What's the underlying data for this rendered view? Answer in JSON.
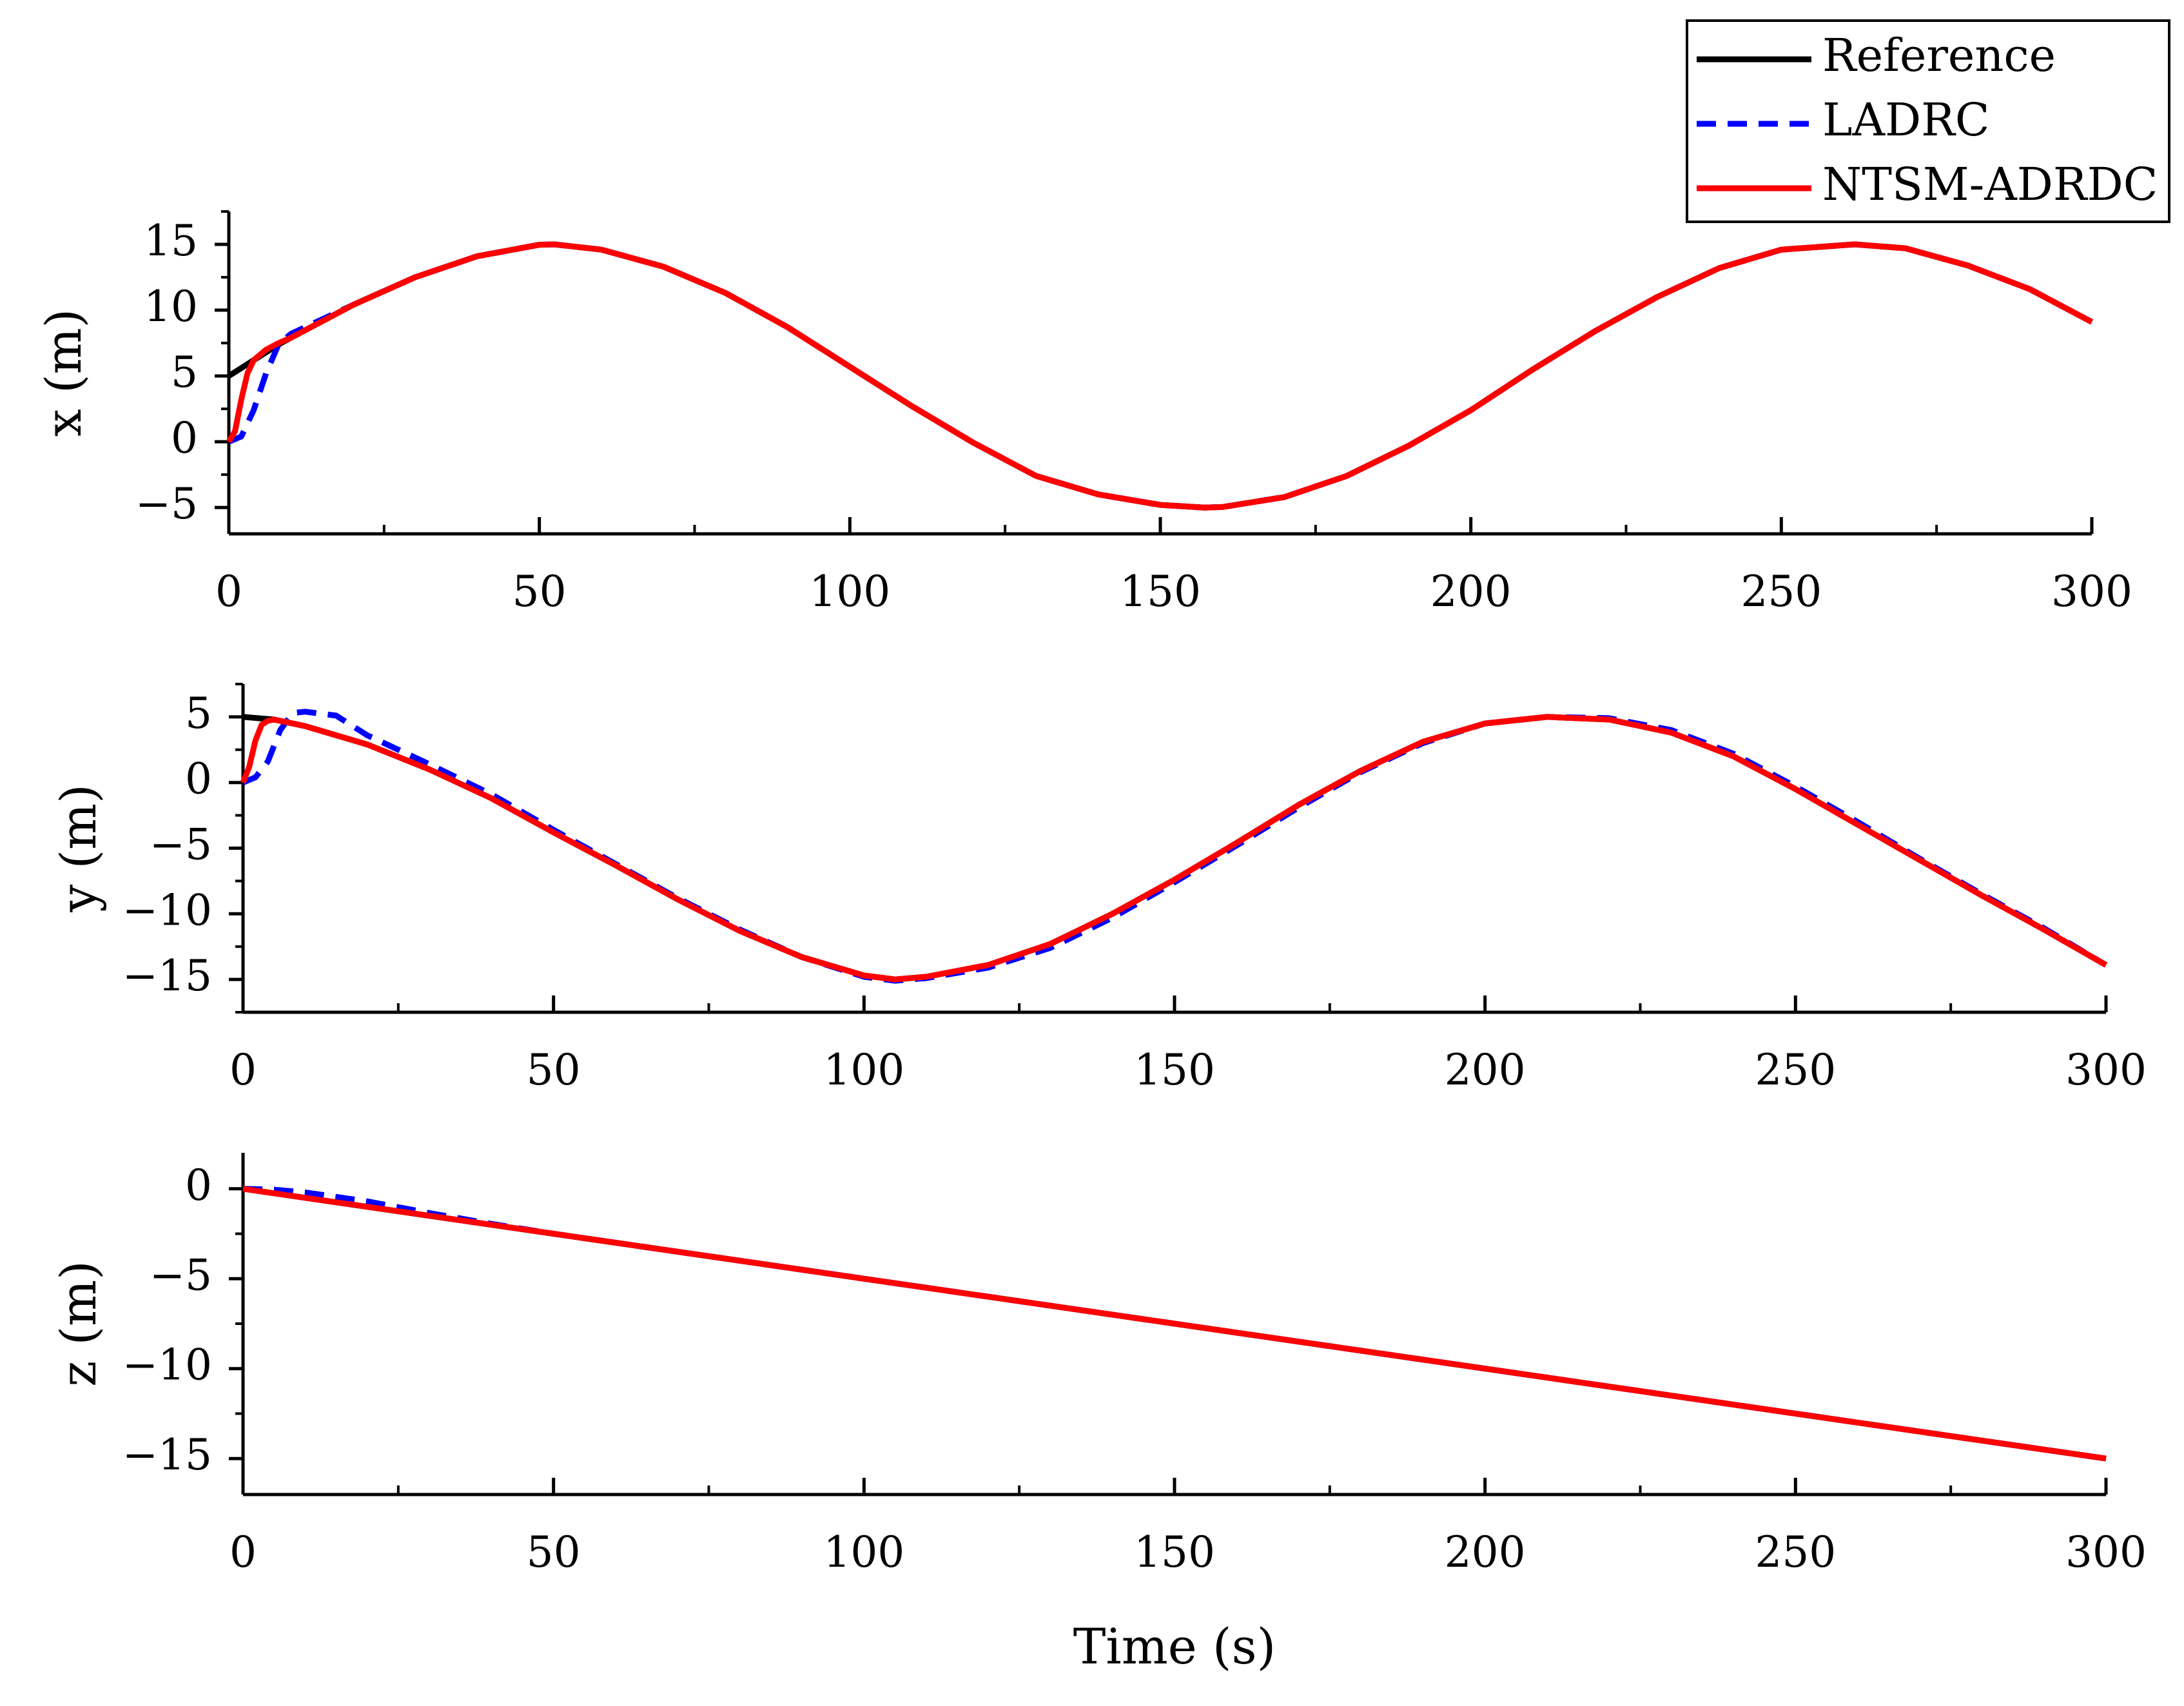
{
  "chart_data": [
    {
      "type": "line",
      "title": "",
      "xlabel": "",
      "ylabel": "x (m)",
      "xlim": [
        0,
        300
      ],
      "ylim": [
        -7,
        17.5
      ],
      "xticks": [
        0,
        50,
        100,
        150,
        200,
        250,
        300
      ],
      "yticks": [
        -5,
        0,
        5,
        10,
        15
      ],
      "grid": false,
      "series": [
        {
          "name": "Reference",
          "color": "#000000",
          "style": "solid",
          "x": [
            0,
            2,
            4,
            6,
            8,
            10,
            20,
            30,
            40,
            50,
            52.4,
            60,
            70,
            80,
            90,
            100,
            110,
            120,
            130,
            140,
            150,
            157.1,
            160,
            170,
            180,
            190,
            200,
            210,
            220,
            230,
            240,
            250,
            261.8,
            270,
            280,
            290,
            300
          ],
          "y": [
            5.0,
            5.6,
            6.2,
            6.8,
            7.4,
            7.9,
            10.4,
            12.5,
            14.1,
            14.97,
            15.0,
            14.6,
            13.3,
            11.3,
            8.7,
            5.7,
            2.7,
            -0.1,
            -2.6,
            -4.0,
            -4.8,
            -5.0,
            -4.96,
            -4.2,
            -2.6,
            -0.3,
            2.4,
            5.5,
            8.4,
            11.0,
            13.2,
            14.6,
            15.0,
            14.7,
            13.4,
            11.6,
            9.1
          ]
        },
        {
          "name": "LADRC",
          "color": "#0000ff",
          "style": "dashed",
          "x": [
            0,
            2,
            4,
            6,
            8,
            10,
            20,
            30,
            40,
            50,
            52.4,
            60,
            70,
            80,
            90,
            100,
            110,
            120,
            130,
            140,
            150,
            157.1,
            160,
            170,
            180,
            190,
            200,
            210,
            220,
            230,
            240,
            250,
            261.8,
            270,
            280,
            290,
            300
          ],
          "y": [
            0.0,
            0.4,
            2.4,
            5.2,
            7.4,
            8.2,
            10.4,
            12.5,
            14.1,
            14.97,
            15.0,
            14.6,
            13.3,
            11.3,
            8.7,
            5.7,
            2.7,
            -0.1,
            -2.6,
            -4.0,
            -4.8,
            -5.0,
            -4.96,
            -4.2,
            -2.6,
            -0.3,
            2.4,
            5.5,
            8.4,
            11.0,
            13.2,
            14.6,
            15.0,
            14.7,
            13.4,
            11.6,
            9.1
          ]
        },
        {
          "name": "NTSM-ADRDC",
          "color": "#ff0000",
          "style": "solid",
          "x": [
            0,
            1,
            2,
            3,
            4,
            6,
            8,
            10,
            20,
            30,
            40,
            50,
            52.4,
            60,
            70,
            80,
            90,
            100,
            110,
            120,
            130,
            140,
            150,
            157.1,
            160,
            170,
            180,
            190,
            200,
            210,
            220,
            230,
            240,
            250,
            261.8,
            270,
            280,
            290,
            300
          ],
          "y": [
            0.0,
            0.8,
            3.2,
            5.2,
            6.2,
            7.0,
            7.5,
            7.9,
            10.4,
            12.5,
            14.1,
            14.97,
            15.0,
            14.6,
            13.3,
            11.3,
            8.7,
            5.7,
            2.7,
            -0.1,
            -2.6,
            -4.0,
            -4.8,
            -5.0,
            -4.96,
            -4.2,
            -2.6,
            -0.3,
            2.4,
            5.5,
            8.4,
            11.0,
            13.2,
            14.6,
            15.0,
            14.7,
            13.4,
            11.6,
            9.1
          ]
        }
      ]
    },
    {
      "type": "line",
      "title": "",
      "xlabel": "",
      "ylabel": "y (m)",
      "xlim": [
        0,
        300
      ],
      "ylim": [
        -17.5,
        7.5
      ],
      "xticks": [
        0,
        50,
        100,
        150,
        200,
        250,
        300
      ],
      "yticks": [
        -15,
        -10,
        -5,
        0,
        5
      ],
      "grid": false,
      "series": [
        {
          "name": "Reference",
          "color": "#000000",
          "style": "solid",
          "x": [
            0,
            5,
            10,
            20,
            30,
            40,
            50,
            60,
            70,
            80,
            90,
            100,
            105,
            110,
            120,
            130,
            140,
            150,
            160,
            170,
            180,
            190,
            200,
            210,
            220,
            230,
            240,
            250,
            260,
            270,
            280,
            290,
            300
          ],
          "y": [
            5.0,
            4.8,
            4.3,
            2.9,
            1.0,
            -1.2,
            -3.8,
            -6.3,
            -8.9,
            -11.3,
            -13.3,
            -14.7,
            -15.0,
            -14.8,
            -13.9,
            -12.3,
            -10.0,
            -7.4,
            -4.6,
            -1.7,
            0.9,
            3.1,
            4.5,
            5.0,
            4.8,
            3.8,
            2.0,
            -0.5,
            -3.2,
            -5.9,
            -8.6,
            -11.2,
            -13.9
          ]
        },
        {
          "name": "LADRC",
          "color": "#0000ff",
          "style": "dashed",
          "x": [
            0,
            2,
            4,
            6,
            8,
            10,
            15,
            20,
            30,
            40,
            50,
            60,
            70,
            80,
            90,
            100,
            105,
            110,
            120,
            130,
            140,
            150,
            160,
            170,
            180,
            190,
            200,
            210,
            220,
            230,
            240,
            250,
            260,
            270,
            280,
            290,
            300
          ],
          "y": [
            0.0,
            0.4,
            1.6,
            4.0,
            5.3,
            5.4,
            5.1,
            3.6,
            1.4,
            -0.9,
            -3.6,
            -6.2,
            -8.8,
            -11.2,
            -13.3,
            -14.8,
            -15.1,
            -14.9,
            -14.1,
            -12.6,
            -10.3,
            -7.6,
            -4.8,
            -1.9,
            0.8,
            3.0,
            4.5,
            5.0,
            4.9,
            4.0,
            2.2,
            -0.3,
            -3.0,
            -5.8,
            -8.5,
            -11.1,
            -13.9
          ]
        },
        {
          "name": "NTSM-ADRDC",
          "color": "#ff0000",
          "style": "solid",
          "x": [
            0,
            1,
            2,
            3,
            4,
            5,
            10,
            20,
            30,
            40,
            50,
            60,
            70,
            80,
            90,
            100,
            105,
            110,
            120,
            130,
            140,
            150,
            160,
            170,
            180,
            190,
            200,
            210,
            220,
            230,
            240,
            250,
            260,
            270,
            280,
            290,
            300
          ],
          "y": [
            0.0,
            1.2,
            3.2,
            4.4,
            4.7,
            4.8,
            4.3,
            2.9,
            1.0,
            -1.2,
            -3.8,
            -6.3,
            -8.9,
            -11.3,
            -13.3,
            -14.7,
            -15.0,
            -14.8,
            -13.9,
            -12.3,
            -10.0,
            -7.4,
            -4.6,
            -1.7,
            0.9,
            3.1,
            4.5,
            5.0,
            4.8,
            3.8,
            2.0,
            -0.5,
            -3.2,
            -5.9,
            -8.6,
            -11.2,
            -13.9
          ]
        }
      ]
    },
    {
      "type": "line",
      "title": "",
      "xlabel": "Time (s)",
      "ylabel": "z (m)",
      "xlim": [
        0,
        300
      ],
      "ylim": [
        -17,
        2
      ],
      "xticks": [
        0,
        50,
        100,
        150,
        200,
        250,
        300
      ],
      "yticks": [
        -15,
        -10,
        -5,
        0
      ],
      "grid": false,
      "series": [
        {
          "name": "Reference",
          "color": "#000000",
          "style": "solid",
          "x": [
            0,
            300
          ],
          "y": [
            0.0,
            -15.0
          ]
        },
        {
          "name": "LADRC",
          "color": "#0000ff",
          "style": "dashed",
          "x": [
            0,
            5,
            10,
            20,
            30,
            40,
            50,
            100,
            150,
            200,
            250,
            300
          ],
          "y": [
            0.0,
            -0.05,
            -0.2,
            -0.7,
            -1.35,
            -1.95,
            -2.5,
            -5.0,
            -7.5,
            -10.0,
            -12.5,
            -15.0
          ]
        },
        {
          "name": "NTSM-ADRDC",
          "color": "#ff0000",
          "style": "solid",
          "x": [
            0,
            50,
            100,
            150,
            200,
            250,
            300
          ],
          "y": [
            0.0,
            -2.5,
            -5.0,
            -7.5,
            -10.0,
            -12.5,
            -15.0
          ]
        }
      ]
    }
  ],
  "legend": {
    "position": "top-right",
    "entries": [
      {
        "label": "Reference",
        "color": "#000000",
        "style": "solid"
      },
      {
        "label": "LADRC",
        "color": "#0000ff",
        "style": "dashed"
      },
      {
        "label": "NTSM-ADRDC",
        "color": "#ff0000",
        "style": "solid"
      }
    ]
  }
}
